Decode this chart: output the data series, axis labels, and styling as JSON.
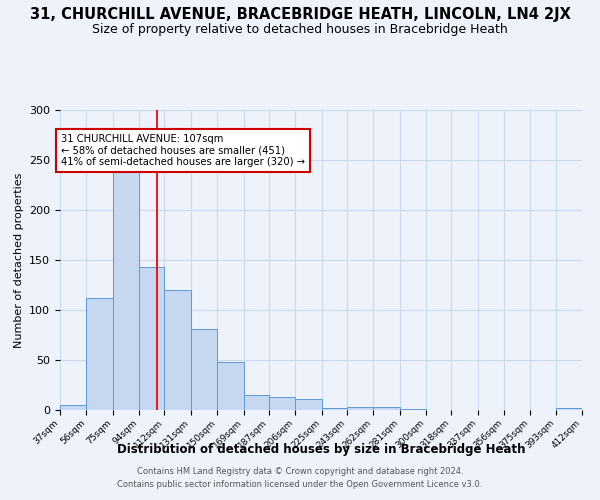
{
  "title": "31, CHURCHILL AVENUE, BRACEBRIDGE HEATH, LINCOLN, LN4 2JX",
  "subtitle": "Size of property relative to detached houses in Bracebridge Heath",
  "xlabel": "Distribution of detached houses by size in Bracebridge Heath",
  "ylabel": "Number of detached properties",
  "footer_line1": "Contains HM Land Registry data © Crown copyright and database right 2024.",
  "footer_line2": "Contains public sector information licensed under the Open Government Licence v3.0.",
  "annotation_line1": "31 CHURCHILL AVENUE: 107sqm",
  "annotation_line2": "← 58% of detached houses are smaller (451)",
  "annotation_line3": "41% of semi-detached houses are larger (320) →",
  "bin_edges": [
    37,
    56,
    75,
    94,
    112,
    131,
    150,
    169,
    187,
    206,
    225,
    243,
    262,
    281,
    300,
    318,
    337,
    356,
    375,
    393,
    412
  ],
  "bin_labels": [
    "37sqm",
    "56sqm",
    "75sqm",
    "94sqm",
    "112sqm",
    "131sqm",
    "150sqm",
    "169sqm",
    "187sqm",
    "206sqm",
    "225sqm",
    "243sqm",
    "262sqm",
    "281sqm",
    "300sqm",
    "318sqm",
    "337sqm",
    "356sqm",
    "375sqm",
    "393sqm",
    "412sqm"
  ],
  "bar_heights": [
    5,
    112,
    245,
    143,
    120,
    81,
    48,
    15,
    13,
    11,
    2,
    3,
    3,
    1,
    0,
    0,
    0,
    0,
    0,
    2
  ],
  "bar_color": "#c5d8f0",
  "bar_edge_color": "#5b9bd5",
  "grid_color": "#c8d8ee",
  "red_line_x": 107,
  "ylim": [
    0,
    300
  ],
  "yticks": [
    0,
    50,
    100,
    150,
    200,
    250,
    300
  ],
  "bg_color": "#eef2fb",
  "title_fontsize": 10.5,
  "subtitle_fontsize": 9,
  "annotation_box_color": "#ffffff",
  "annotation_box_edge": "#cc0000",
  "footer_color": "#555555",
  "footer_fontsize": 6
}
